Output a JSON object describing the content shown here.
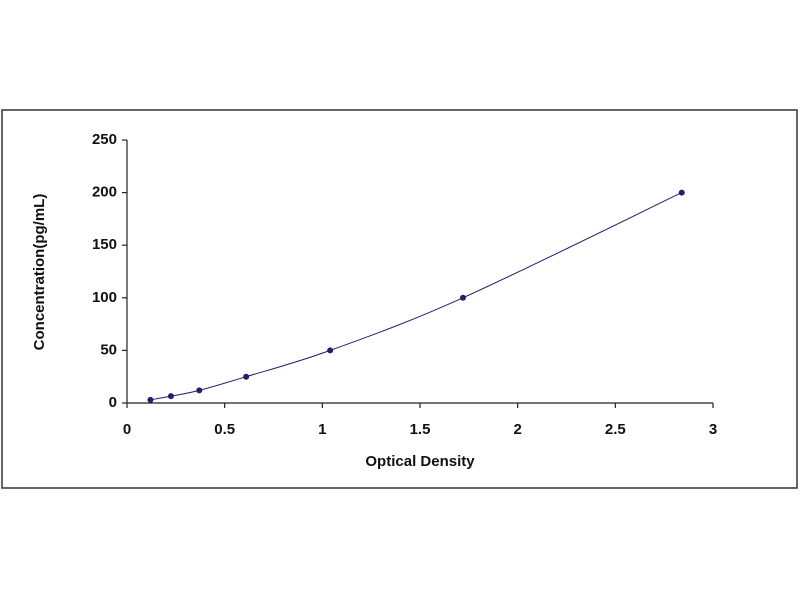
{
  "chart_data": {
    "type": "scatter",
    "xlabel": "Optical Density",
    "ylabel": "Concentration(pg/mL)",
    "x": [
      0.12,
      0.225,
      0.37,
      0.61,
      1.04,
      1.72,
      2.84
    ],
    "values": [
      3,
      6.5,
      12,
      25,
      50,
      100,
      200
    ],
    "color": "#1f1f6e",
    "trendline": true,
    "xlim": [
      0,
      3
    ],
    "xticks": [
      0,
      0.5,
      1,
      1.5,
      2,
      2.5,
      3
    ],
    "ylim": [
      0,
      250
    ],
    "yticks": [
      0,
      50,
      100,
      150,
      200,
      250
    ]
  }
}
